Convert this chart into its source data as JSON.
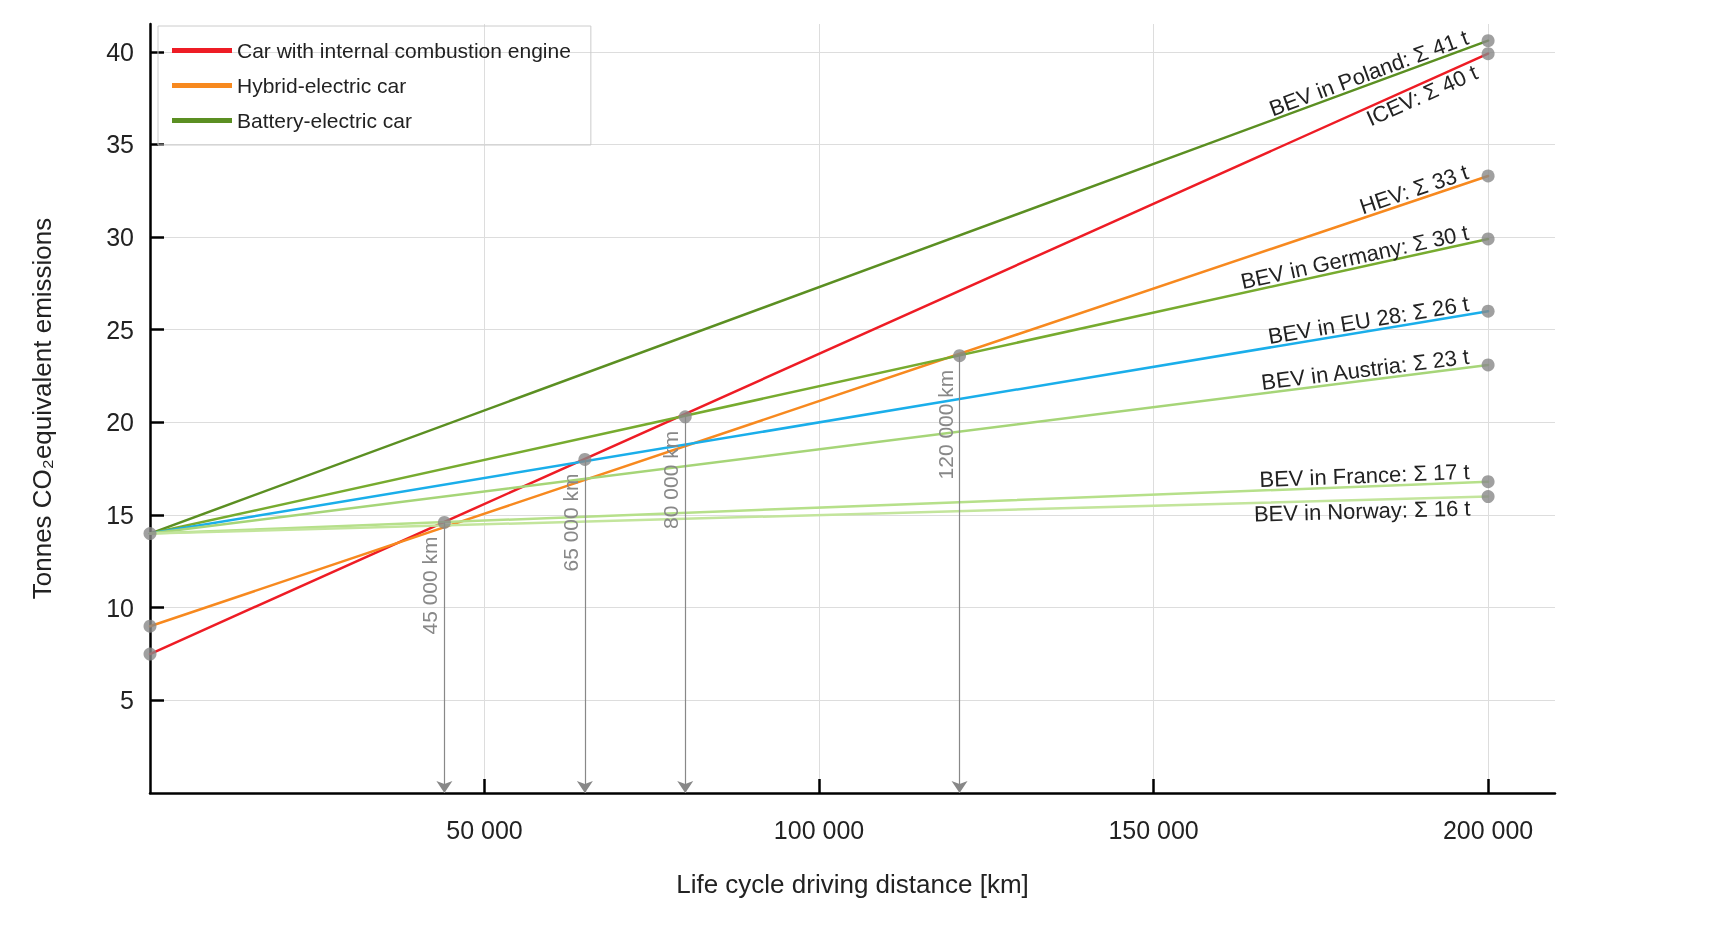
{
  "chart_data": {
    "type": "line",
    "xlabel": "Life cycle driving distance [km]",
    "ylabel": "Tonnes CO₂equivalent emissions",
    "x": [
      0,
      200000
    ],
    "xlim": [
      0,
      210000
    ],
    "ylim": [
      0,
      41.5
    ],
    "xticks": [
      {
        "value": 50000,
        "label": "50 000"
      },
      {
        "value": 100000,
        "label": "100 000"
      },
      {
        "value": 150000,
        "label": "150 000"
      },
      {
        "value": 200000,
        "label": "200 000"
      }
    ],
    "yticks": [
      5,
      10,
      15,
      20,
      25,
      30,
      35,
      40
    ],
    "grid": true,
    "legend": "top left",
    "marker": "none",
    "line_style": "solid",
    "series": [
      {
        "name": "Car with internal combustion engine",
        "color": "#ee1c25",
        "values": [
          7.5,
          39.9
        ]
      },
      {
        "name": "Hybrid-electric car",
        "color": "#f7891f",
        "values": [
          9,
          33.3
        ]
      },
      {
        "name": "Battery-electric car",
        "color": "#5b8f22",
        "values": [
          14,
          40.6
        ]
      },
      {
        "color": "#77ab2f",
        "values": [
          14,
          29.9
        ]
      },
      {
        "color": "#1aaeea",
        "values": [
          14,
          26
        ]
      },
      {
        "color": "#a6d578",
        "values": [
          14,
          23.1
        ]
      },
      {
        "color": "#b6e08a",
        "values": [
          14,
          16.8
        ]
      },
      {
        "color": "#c3e59c",
        "values": [
          14,
          16
        ]
      },
      {
        "type": "scatter",
        "marker": "circle",
        "color": "#888888",
        "x": [
          0,
          0,
          0,
          44000,
          65000,
          80000,
          121000,
          200000,
          200000,
          200000,
          200000,
          200000,
          200000,
          200000,
          200000
        ],
        "values": [
          7.5,
          9,
          14,
          14.6,
          18,
          20.3,
          23.6,
          40.6,
          39.9,
          33.3,
          29.9,
          26,
          23.1,
          16.8,
          16
        ]
      }
    ],
    "annotations": [
      {
        "text": "BEV in Poland: Σ 41 t",
        "x": 200000,
        "y": 40.6
      },
      {
        "text": "ICEV: Σ 40 t",
        "x": 200000,
        "y": 39.9
      },
      {
        "text": "HEV: Σ 33 t",
        "x": 200000,
        "y": 33.3
      },
      {
        "text": "BEV in Germany: Σ 30 t",
        "x": 200000,
        "y": 29.9
      },
      {
        "text": "BEV in EU 28: Σ 26 t",
        "x": 200000,
        "y": 26
      },
      {
        "text": "BEV in Austria: Σ 23 t",
        "x": 200000,
        "y": 23.1
      },
      {
        "text": "BEV in France: Σ 17 t",
        "x": 200000,
        "y": 16.8
      },
      {
        "text": "BEV in Norway: Σ 16 t",
        "x": 200000,
        "y": 16
      },
      {
        "text": "45 000 km",
        "x": 44000,
        "y": 14.6
      },
      {
        "text": "65 000 km",
        "x": 65000,
        "y": 18
      },
      {
        "text": "80 000 km",
        "x": 80000,
        "y": 20.3
      },
      {
        "text": "120 000 km",
        "x": 121000,
        "y": 23.6
      }
    ]
  }
}
